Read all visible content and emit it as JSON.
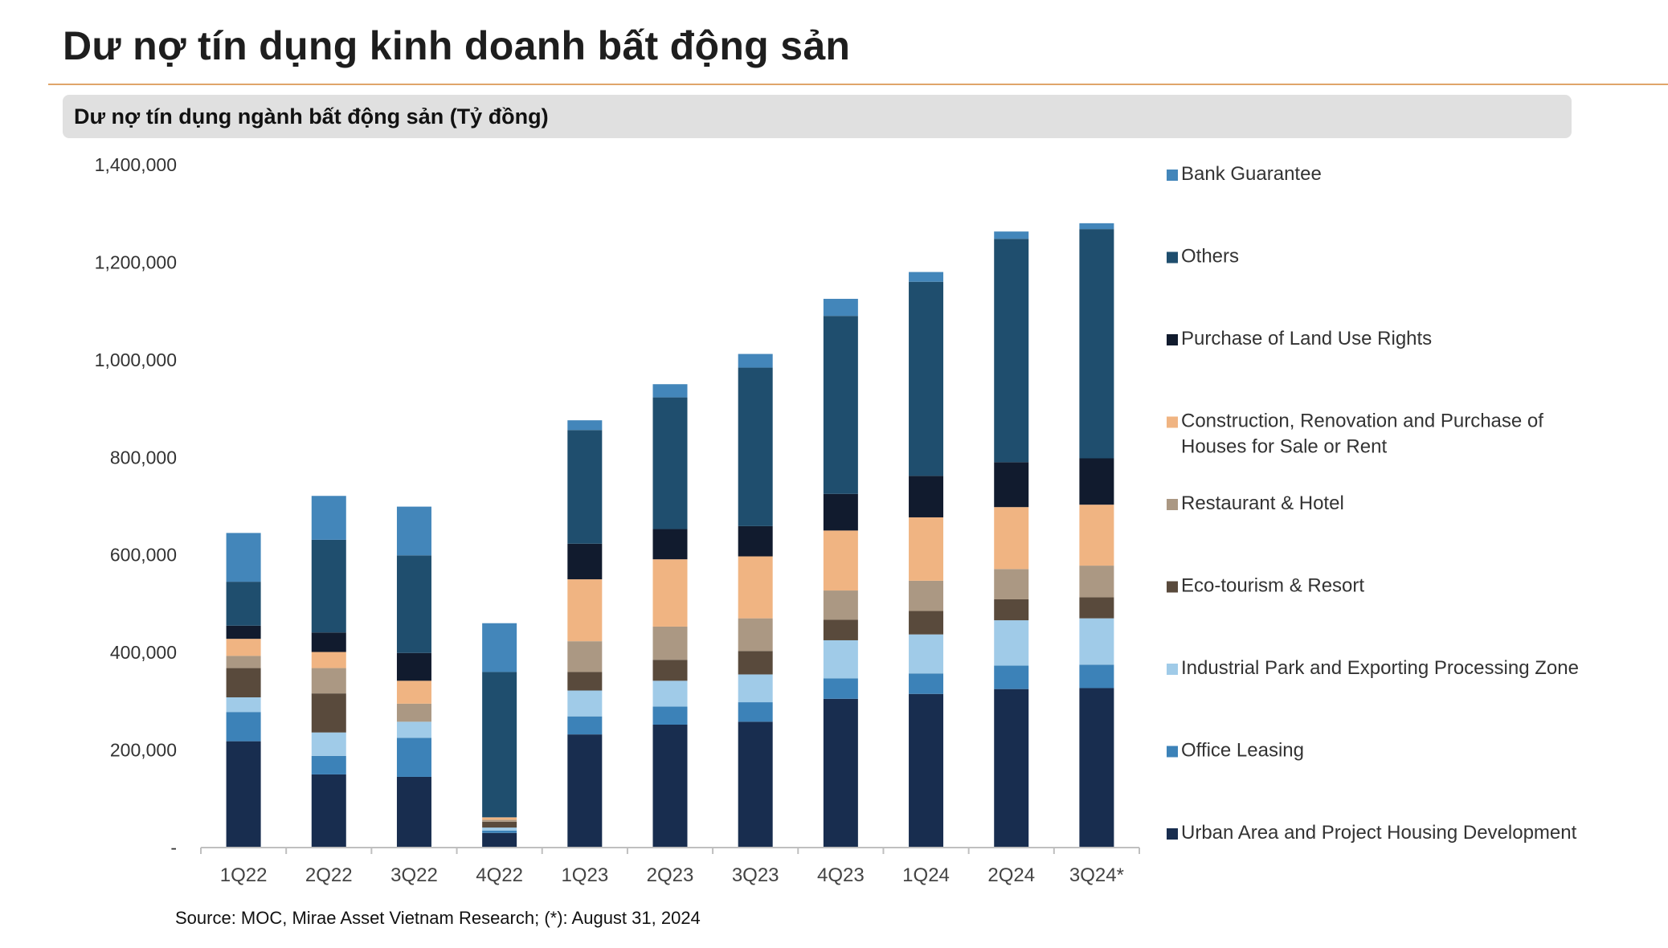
{
  "header": {
    "title": "Dư nợ tín dụng kinh doanh bất động sản",
    "subtitle": "Dư nợ tín dụng ngành bất động sản (Tỷ đồng)"
  },
  "footer": {
    "source": "Source: MOC, Mirae Asset Vietnam Research; (*): August 31, 2024"
  },
  "chart_data": {
    "type": "bar",
    "stacked": true,
    "title": "Dư nợ tín dụng ngành bất động sản (Tỷ đồng)",
    "xlabel": "",
    "ylabel": "",
    "ylim": [
      0,
      1400000
    ],
    "yticks": [
      0,
      200000,
      400000,
      600000,
      800000,
      1000000,
      1200000,
      1400000
    ],
    "ytick_labels": [
      "-",
      "200,000",
      "400,000",
      "600,000",
      "800,000",
      "1,000,000",
      "1,200,000",
      "1,400,000"
    ],
    "grid": false,
    "legend_position": "right",
    "categories": [
      "1Q22",
      "2Q22",
      "3Q22",
      "4Q22",
      "1Q23",
      "2Q23",
      "3Q23",
      "4Q23",
      "1Q24",
      "2Q24",
      "3Q24*"
    ],
    "series": [
      {
        "name": "Urban Area and Project Housing Development",
        "color": "#182d4f",
        "values": [
          218000,
          150000,
          145000,
          30000,
          232000,
          252000,
          258000,
          305000,
          315000,
          325000,
          327000
        ]
      },
      {
        "name": "Office Leasing",
        "color": "#3c82b8",
        "values": [
          60000,
          38000,
          80000,
          5000,
          37000,
          37000,
          40000,
          42000,
          42000,
          48000,
          48000
        ]
      },
      {
        "name": "Industrial Park and Exporting Processing Zone",
        "color": "#a0cbe8",
        "values": [
          30000,
          48000,
          33000,
          6000,
          53000,
          53000,
          57000,
          78000,
          80000,
          93000,
          95000
        ]
      },
      {
        "name": "Eco-tourism & Resort",
        "color": "#594a3c",
        "values": [
          60000,
          80000,
          0,
          12000,
          38000,
          43000,
          48000,
          42000,
          48000,
          43000,
          43000
        ]
      },
      {
        "name": "Restaurant & Hotel",
        "color": "#ab9883",
        "values": [
          25000,
          52000,
          37000,
          4000,
          63000,
          68000,
          67000,
          60000,
          62000,
          62000,
          65000
        ]
      },
      {
        "name": "Construction, Renovation and Purchase of Houses for Sale or Rent",
        "color": "#f0b482",
        "values": [
          35000,
          33000,
          47000,
          5000,
          127000,
          138000,
          127000,
          123000,
          130000,
          127000,
          125000
        ]
      },
      {
        "name": "Purchase of Land Use Rights",
        "color": "#111b2e",
        "values": [
          27000,
          40000,
          57000,
          0,
          73000,
          62000,
          62000,
          75000,
          85000,
          92000,
          95000
        ]
      },
      {
        "name": "Others",
        "color": "#1f4e6e",
        "values": [
          90000,
          190000,
          200000,
          298000,
          233000,
          270000,
          325000,
          365000,
          398000,
          458000,
          470000
        ]
      },
      {
        "name": "Bank Guarantee",
        "color": "#4386ba",
        "values": [
          100000,
          90000,
          100000,
          100000,
          20000,
          27000,
          28000,
          35000,
          20000,
          15000,
          12000
        ]
      }
    ]
  }
}
